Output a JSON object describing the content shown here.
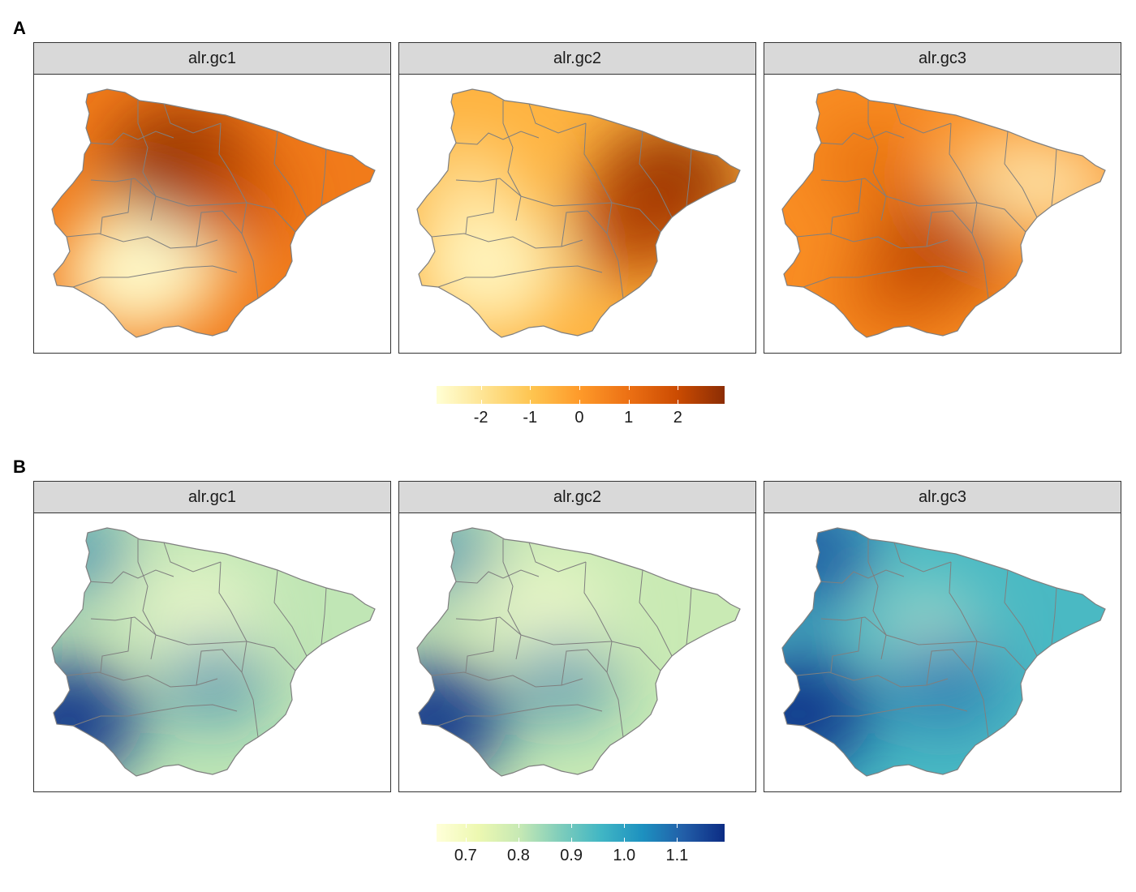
{
  "panels": [
    {
      "label": "A",
      "facets": [
        {
          "title": "alr.gc1",
          "hot": [
            [
              0.4,
              0.3,
              1.0
            ],
            [
              0.55,
              0.45,
              0.6
            ]
          ],
          "cold": [
            [
              0.3,
              0.7,
              1.0
            ],
            [
              0.22,
              0.78,
              0.6
            ]
          ],
          "base": 0.62
        },
        {
          "title": "alr.gc2",
          "hot": [
            [
              0.78,
              0.38,
              1.0
            ],
            [
              0.68,
              0.55,
              0.8
            ]
          ],
          "cold": [
            [
              0.22,
              0.72,
              0.9
            ],
            [
              0.15,
              0.4,
              0.4
            ]
          ],
          "base": 0.4
        },
        {
          "title": "alr.gc3",
          "hot": [
            [
              0.47,
              0.65,
              0.8
            ],
            [
              0.35,
              0.82,
              0.5
            ],
            [
              0.28,
              0.3,
              0.4
            ]
          ],
          "cold": [
            [
              0.7,
              0.35,
              0.5
            ],
            [
              0.88,
              0.4,
              0.5
            ]
          ],
          "base": 0.55
        }
      ],
      "legend": {
        "palette": [
          "#ffffd4",
          "#fee391",
          "#fec44f",
          "#fe9929",
          "#ec7014",
          "#cc4c02",
          "#8c2d04"
        ],
        "ticks": [
          "-2",
          "-1",
          "0",
          "1",
          "2"
        ],
        "tick_values": [
          -2,
          -1,
          0,
          1,
          2
        ],
        "range": [
          -2.9,
          2.95
        ]
      }
    },
    {
      "label": "B",
      "facets": [
        {
          "title": "alr.gc1",
          "hot": [
            [
              0.05,
              0.78,
              1.0
            ],
            [
              0.5,
              0.62,
              0.5
            ],
            [
              0.08,
              0.1,
              0.5
            ]
          ],
          "cold": [
            [
              0.45,
              0.35,
              0.6
            ]
          ],
          "base": 0.3
        },
        {
          "title": "alr.gc2",
          "hot": [
            [
              0.05,
              0.78,
              1.0
            ],
            [
              0.45,
              0.62,
              0.5
            ],
            [
              0.08,
              0.1,
              0.5
            ]
          ],
          "cold": [
            [
              0.4,
              0.35,
              0.6
            ]
          ],
          "base": 0.28
        },
        {
          "title": "alr.gc3",
          "hot": [
            [
              0.05,
              0.75,
              1.0
            ],
            [
              0.08,
              0.1,
              0.8
            ],
            [
              0.5,
              0.62,
              0.6
            ]
          ],
          "cold": [
            [
              0.45,
              0.4,
              0.3
            ]
          ],
          "base": 0.55
        }
      ],
      "legend": {
        "palette": [
          "#ffffd9",
          "#edf8b1",
          "#c7e9b4",
          "#7fcdbb",
          "#41b6c4",
          "#1d91c0",
          "#225ea8",
          "#0c2c84"
        ],
        "ticks": [
          "0.7",
          "0.8",
          "0.9",
          "1.0",
          "1.1"
        ],
        "tick_values": [
          0.7,
          0.8,
          0.9,
          1.0,
          1.1
        ],
        "range": [
          0.645,
          1.19
        ]
      }
    }
  ]
}
